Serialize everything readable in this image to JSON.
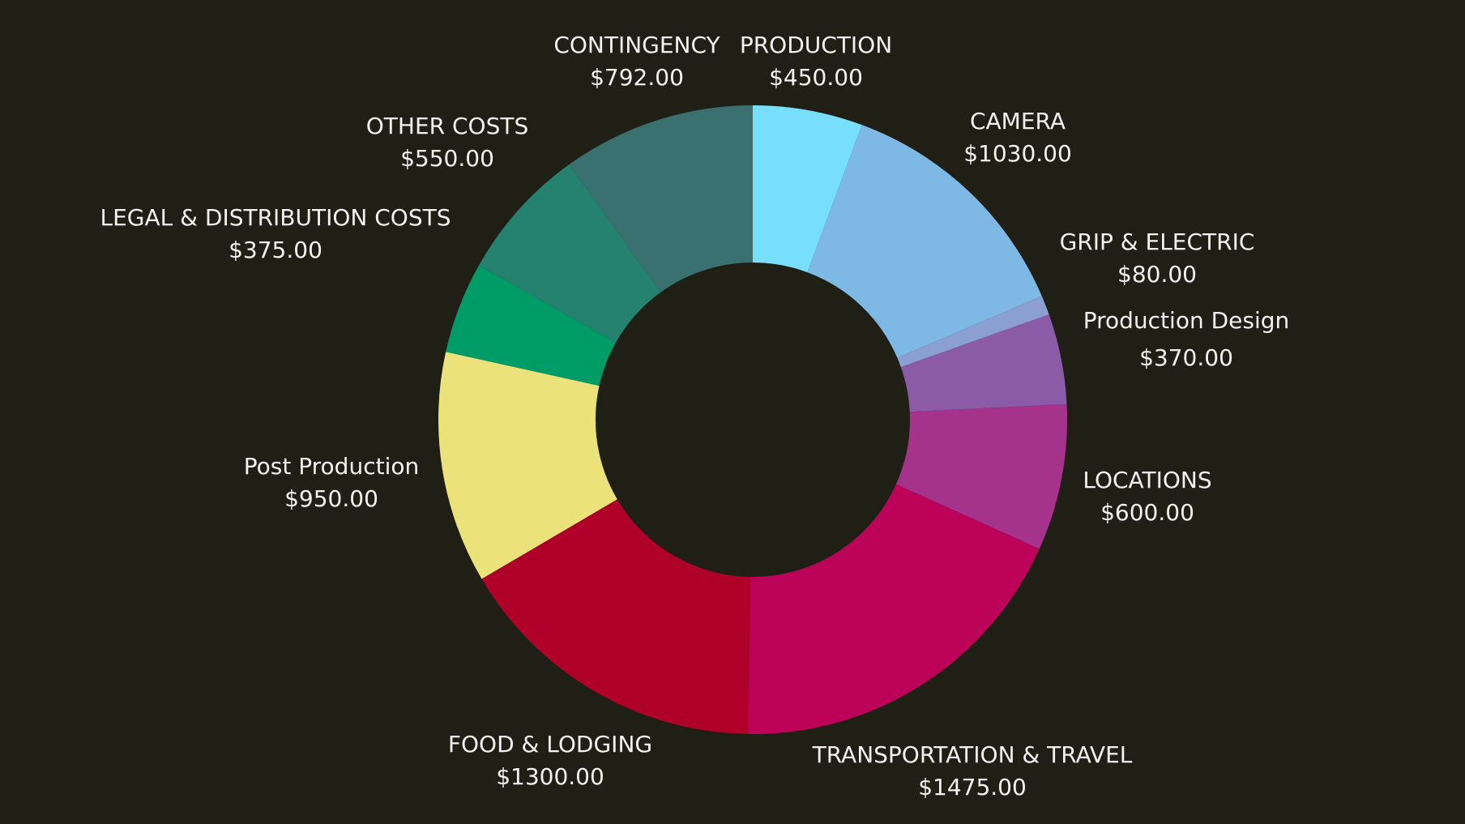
{
  "chart_data": {
    "type": "pie",
    "donut": true,
    "title": "",
    "legend": "none",
    "background_color": "#1f1f15",
    "slices": [
      {
        "name": "PRODUCTION",
        "value_label": "$450.00",
        "value": 450,
        "color": "#77dffc"
      },
      {
        "name": "CAMERA",
        "value_label": "$1030.00",
        "value": 1030,
        "color": "#7eb9e6"
      },
      {
        "name": "GRIP & ELECTRIC",
        "value_label": "$80.00",
        "value": 80,
        "color": "#8b9fd2"
      },
      {
        "name": "Production Design",
        "value_label": "$370.00",
        "value": 370,
        "color": "#8c5ba8"
      },
      {
        "name": "LOCATIONS",
        "value_label": "$600.00",
        "value": 600,
        "color": "#a5338c"
      },
      {
        "name": "TRANSPORTATION & TRAVEL",
        "value_label": "$1475.00",
        "value": 1475,
        "color": "#bd0259"
      },
      {
        "name": "FOOD & LODGING",
        "value_label": "$1300.00",
        "value": 1300,
        "color": "#ae0029"
      },
      {
        "name": "Post Production",
        "value_label": "$950.00",
        "value": 950,
        "color": "#ebe27a"
      },
      {
        "name": "LEGAL & DISTRIBUTION COSTS",
        "value_label": "$375.00",
        "value": 375,
        "color": "#009c68"
      },
      {
        "name": "OTHER COSTS",
        "value_label": "$550.00",
        "value": 550,
        "color": "#24826f"
      },
      {
        "name": "CONTINGENCY",
        "value_label": "$792.00",
        "value": 792,
        "color": "#3a7170"
      }
    ]
  }
}
